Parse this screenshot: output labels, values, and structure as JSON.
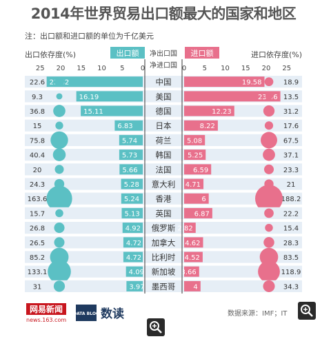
{
  "title": "2014年世界贸易出口额最大的国家和地区",
  "note": "注：出口额和进口额的单位为千亿美元",
  "source": "数据来源：IMF；IT",
  "logo": {
    "name": "网易新闻",
    "url": "news.163.com",
    "data_blog": "DATA BLOG",
    "brand": "数读"
  },
  "colors": {
    "export": "#5bc0c4",
    "import": "#e8708c",
    "row_bg": "#e6eef6",
    "export_text": "#ffffff",
    "import_text": "#ffffff"
  },
  "icons": {
    "zoom": "magnifier-icon"
  },
  "chart_data": {
    "type": "bar",
    "export_header": "出口额",
    "import_header": "进口额",
    "export_dep_header": "出口依存度(%)",
    "import_dep_header": "进口依存度(%)",
    "net_export_label": "净出口国",
    "net_import_label": "净进口国",
    "export_ticks": [
      "25",
      "20",
      "15",
      "10",
      "5",
      "0"
    ],
    "import_ticks": [
      "0",
      "5",
      "10",
      "15",
      "20",
      "25"
    ],
    "xlim": [
      0,
      25
    ],
    "categories": [
      "中国",
      "美国",
      "德国",
      "日本",
      "荷兰",
      "韩国",
      "法国",
      "意大利",
      "香港",
      "英国",
      "俄罗斯",
      "加拿大",
      "比利时",
      "新加坡",
      "墨西哥"
    ],
    "series": [
      {
        "name": "出口额",
        "values": [
          23.42,
          16.19,
          15.11,
          6.83,
          5.74,
          5.73,
          5.66,
          5.28,
          5.24,
          5.13,
          4.92,
          4.72,
          4.72,
          4.09,
          3.97
        ]
      },
      {
        "name": "进口额",
        "values": [
          19.58,
          23.46,
          12.23,
          8.22,
          5.08,
          5.25,
          6.59,
          4.71,
          6,
          6.87,
          2.82,
          4.62,
          4.52,
          3.66,
          4
        ]
      }
    ],
    "export_dependency": [
      "22.6",
      "9.3",
      "36.8",
      "15",
      "75.8",
      "40.4",
      "20",
      "24.3",
      "163.6",
      "15.7",
      "26.8",
      "26.5",
      "85.2",
      "133.1",
      "31"
    ],
    "import_dependency": [
      "18.9",
      "13.5",
      "31.2",
      "17.6",
      "67.5",
      "37.1",
      "23.3",
      "21",
      "188.2",
      "22.2",
      "15.4",
      "28.3",
      "83.5",
      "118.9",
      "34.3"
    ],
    "export_bar_labels": [
      "23.42",
      "16.19",
      "15.11",
      "6.83",
      "5.74",
      "5.73",
      "5.66",
      "5.28",
      "5.24",
      "5.13",
      "4.92",
      "4.72",
      "4.72",
      "4.09",
      "3.97"
    ],
    "import_bar_labels": [
      "19.58",
      "23.46",
      "12.23",
      "8.22",
      "5.08",
      "5.25",
      "6.59",
      "4.71",
      "6",
      "6.87",
      "2.82",
      "4.62",
      "4.52",
      "3.66",
      "4"
    ]
  }
}
